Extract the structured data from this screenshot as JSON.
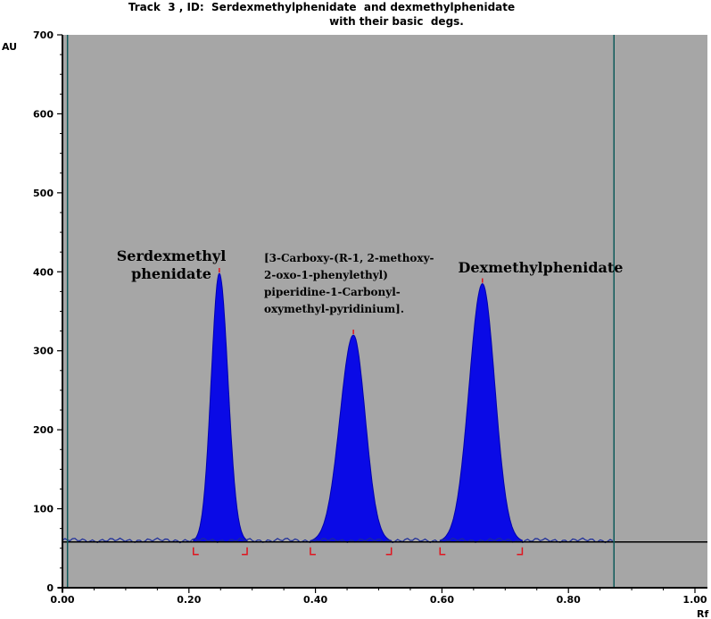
{
  "chart_data": {
    "type": "area",
    "title_line1": "Track  3 , ID:  Serdexmethylphenidate  and dexmethylphenidate",
    "title_line2": "with their basic  degs.",
    "ylabel": "AU",
    "xlabel": "Rf",
    "xlim": [
      0.0,
      1.0
    ],
    "ylim": [
      0,
      700
    ],
    "x_ticks": [
      "0.00",
      "0.20",
      "0.40",
      "0.60",
      "0.80",
      "1.00"
    ],
    "y_ticks": [
      "0",
      "100",
      "200",
      "300",
      "400",
      "500",
      "600",
      "700"
    ],
    "baseline_au": 58,
    "vertical_markers_rf": [
      0.008,
      0.872
    ],
    "series": [
      {
        "peaks": [
          {
            "rf": 0.248,
            "height_au": 398,
            "start_rf": 0.207,
            "end_rf": 0.292,
            "label": "Serdexmethyl\nphenidate"
          },
          {
            "rf": 0.46,
            "height_au": 320,
            "start_rf": 0.392,
            "end_rf": 0.52,
            "label": "[3-Carboxy-(R-1, 2-methoxy-\n2-oxo-1-phenylethyl)\npiperidine-1-Carbonyl-\noxymethyl-pyridinium]."
          },
          {
            "rf": 0.664,
            "height_au": 385,
            "start_rf": 0.597,
            "end_rf": 0.727,
            "label": "Dexmethylphenidate"
          }
        ]
      }
    ],
    "grid": false,
    "colors": {
      "plot_bg": "#a6a6a6",
      "peak_fill": "#0a0ae6",
      "baseline": "#000000",
      "marker_line": "#0f5a5a",
      "integration_marks": "#e0141e"
    }
  }
}
